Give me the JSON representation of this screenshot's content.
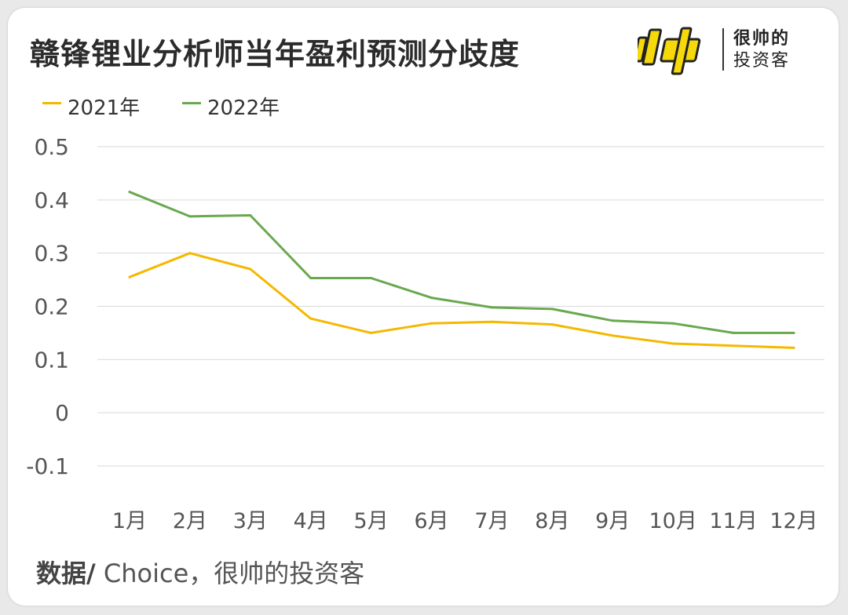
{
  "header": {
    "title": "赣锋锂业分析师当年盈利预测分歧度"
  },
  "logo": {
    "icon": "shuai-logo-icon",
    "line1": "很帅的",
    "line2": "投资客",
    "accent_color": "#f5d90a"
  },
  "footer": {
    "source_label": "数据/",
    "source_text": " Choice，很帅的投资客"
  },
  "chart_data": {
    "type": "line",
    "categories": [
      "1月",
      "2月",
      "3月",
      "4月",
      "5月",
      "6月",
      "7月",
      "8月",
      "9月",
      "10月",
      "11月",
      "12月"
    ],
    "series": [
      {
        "name": "2021年",
        "color": "#f5b800",
        "values": [
          0.255,
          0.3,
          0.27,
          0.177,
          0.15,
          0.168,
          0.171,
          0.166,
          0.145,
          0.13,
          0.126,
          0.122
        ]
      },
      {
        "name": "2022年",
        "color": "#6aa84f",
        "values": [
          0.415,
          0.369,
          0.371,
          0.253,
          0.253,
          0.216,
          0.198,
          0.195,
          0.173,
          0.168,
          0.15,
          0.15
        ]
      }
    ],
    "ylim": [
      -0.1,
      0.5
    ],
    "yticks": [
      0.5,
      0.4,
      0.3,
      0.2,
      0.1,
      0,
      -0.1
    ],
    "ytick_labels": [
      "0.5",
      "0.4",
      "0.3",
      "0.2",
      "0.1",
      "0",
      "-0.1"
    ],
    "grid": true,
    "legend_position": "top-left",
    "title": "",
    "xlabel": "",
    "ylabel": ""
  }
}
